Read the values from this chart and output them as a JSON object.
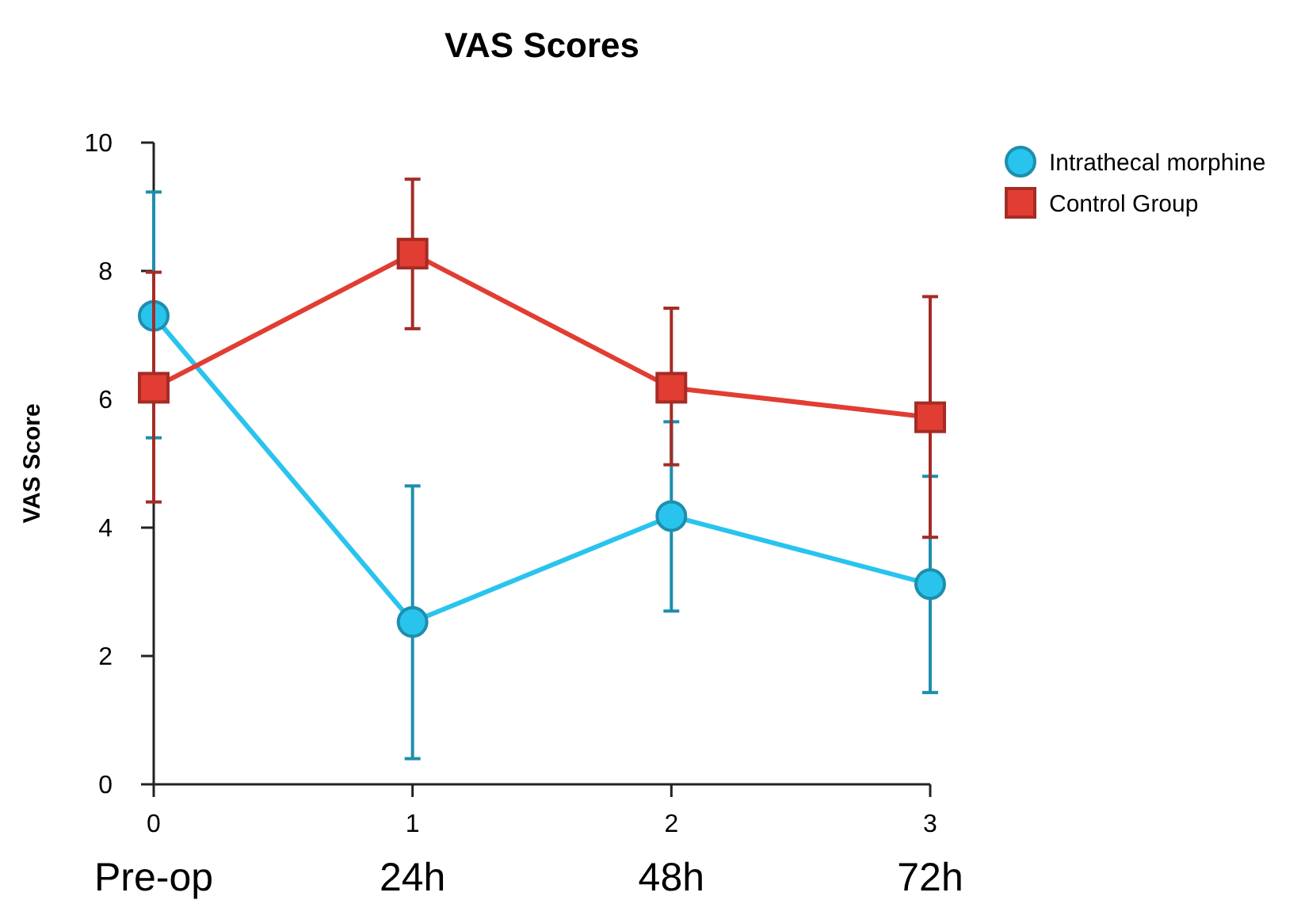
{
  "chart_data": {
    "type": "line",
    "title": "VAS Scores",
    "ylabel": "VAS Score",
    "x": [
      0,
      1,
      2,
      3
    ],
    "xlim": [
      0,
      3
    ],
    "xticks": [
      0,
      1,
      2,
      3
    ],
    "ylim": [
      0,
      10
    ],
    "yticks": [
      0,
      2,
      4,
      6,
      8,
      10
    ],
    "grid": false,
    "legend": "top right",
    "annotations": [
      "Pre-op",
      "24h",
      "48h",
      "72h"
    ],
    "series": [
      {
        "name": "Intrathecal morphine",
        "color": "#29c4ee",
        "marker": "circle",
        "values": [
          7.3,
          2.53,
          4.18,
          3.12
        ],
        "errors": [
          [
            5.4,
            9.23
          ],
          [
            0.4,
            4.65
          ],
          [
            2.7,
            5.65
          ],
          [
            1.43,
            4.8
          ]
        ]
      },
      {
        "name": "Control Group",
        "color": "#e23d33",
        "marker": "square",
        "values": [
          6.18,
          8.27,
          6.18,
          5.72
        ],
        "errors": [
          [
            4.4,
            7.98
          ],
          [
            7.1,
            9.43
          ],
          [
            4.98,
            7.42
          ],
          [
            3.85,
            7.6
          ]
        ]
      }
    ]
  }
}
